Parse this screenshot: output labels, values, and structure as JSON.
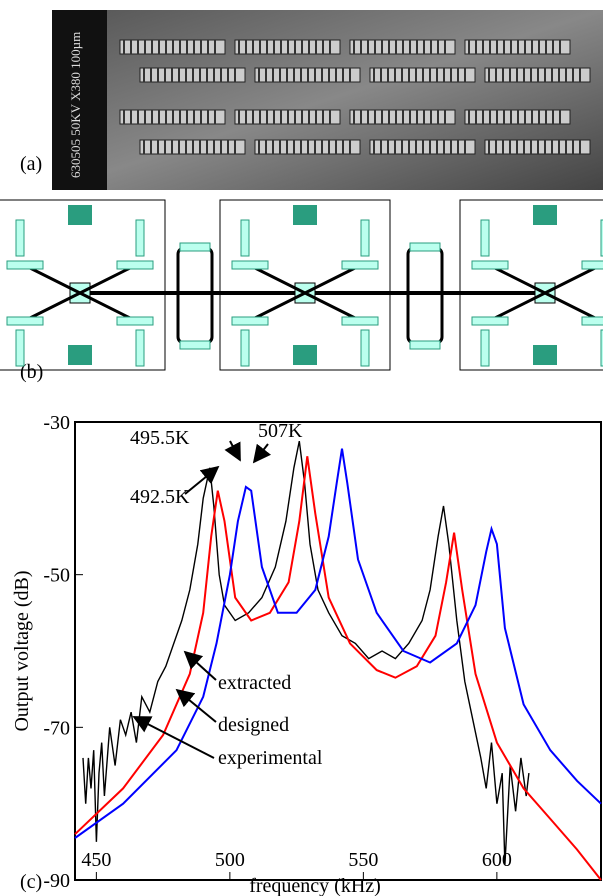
{
  "panels": {
    "a": "(a)",
    "b": "(b)",
    "c": "(c)"
  },
  "panel_a": {
    "scale_text": "630505 50KV X380 100µm"
  },
  "chart_data": {
    "type": "line",
    "x_label": "frequency (kHz)",
    "y_label": "Output voltage (dB)",
    "annotations": [
      "495.5K",
      "507K",
      "492.5K"
    ],
    "xlim": [
      442,
      639
    ],
    "xticks": [
      450,
      500,
      550,
      600
    ],
    "ylim": [
      -90,
      -30
    ],
    "yticks": [
      -30,
      -50,
      -70,
      -90
    ],
    "series": [
      {
        "name": "experimental",
        "color": "#000000",
        "x": [
          445,
          446,
          447,
          448,
          449,
          450,
          451,
          452,
          453,
          455,
          457,
          459,
          461,
          463,
          465,
          467,
          470,
          473,
          476,
          479,
          482,
          485,
          488,
          490,
          492.5,
          494,
          496,
          498,
          502,
          507,
          512,
          517,
          521,
          524,
          526,
          528,
          530,
          533,
          537,
          542,
          547,
          552,
          557,
          562,
          567,
          572,
          575,
          578,
          580,
          582,
          585,
          588,
          591,
          594,
          596,
          598,
          600,
          602,
          603,
          605,
          607,
          609,
          611,
          612
        ],
        "values": [
          -74,
          -80,
          -74,
          -78,
          -73,
          -85,
          -76,
          -72,
          -79,
          -70,
          -75,
          -69,
          -71,
          -68,
          -72,
          -66,
          -68,
          -64,
          -62,
          -59,
          -56,
          -52,
          -46,
          -40,
          -36,
          -41,
          -50,
          -54,
          -56,
          -55,
          -53,
          -49,
          -43,
          -36,
          -32.5,
          -38,
          -46,
          -52,
          -55,
          -58,
          -59,
          -61,
          -60,
          -61,
          -59,
          -56,
          -52,
          -45,
          -41,
          -46,
          -56,
          -64,
          -69,
          -74,
          -78,
          -72,
          -80,
          -76,
          -88,
          -75,
          -81,
          -74,
          -79,
          -76
        ]
      },
      {
        "name": "extracted",
        "color": "#ff0000",
        "x": [
          442,
          460,
          475,
          485,
          490,
          493,
          495.5,
          498,
          502,
          508,
          515,
          522,
          526,
          529,
          532,
          537,
          545,
          555,
          562,
          570,
          577,
          581,
          584,
          587,
          592,
          600,
          610,
          620,
          630,
          639
        ],
        "values": [
          -84,
          -78,
          -71,
          -63,
          -55,
          -45,
          -39,
          -43,
          -53,
          -56,
          -55,
          -51,
          -43,
          -34.5,
          -42,
          -53,
          -59,
          -62.5,
          -63.5,
          -62,
          -58,
          -51,
          -44.5,
          -52,
          -63,
          -72,
          -78,
          -82,
          -86,
          -90
        ]
      },
      {
        "name": "designed",
        "color": "#0000ff",
        "x": [
          442,
          460,
          480,
          490,
          495,
          500,
          503,
          506,
          508,
          512,
          518,
          525,
          532,
          537,
          540,
          542,
          544,
          548,
          555,
          565,
          575,
          585,
          592,
          596,
          598,
          600,
          603,
          610,
          620,
          630,
          639
        ],
        "values": [
          -84.5,
          -80,
          -73,
          -66,
          -59,
          -50,
          -43,
          -38.5,
          -39,
          -49,
          -55,
          -55,
          -52,
          -45,
          -38,
          -33.5,
          -38,
          -48,
          -55,
          -60,
          -61.5,
          -59,
          -54,
          -47,
          -44,
          -46,
          -57,
          -67,
          -73,
          -77,
          -80
        ]
      }
    ]
  }
}
